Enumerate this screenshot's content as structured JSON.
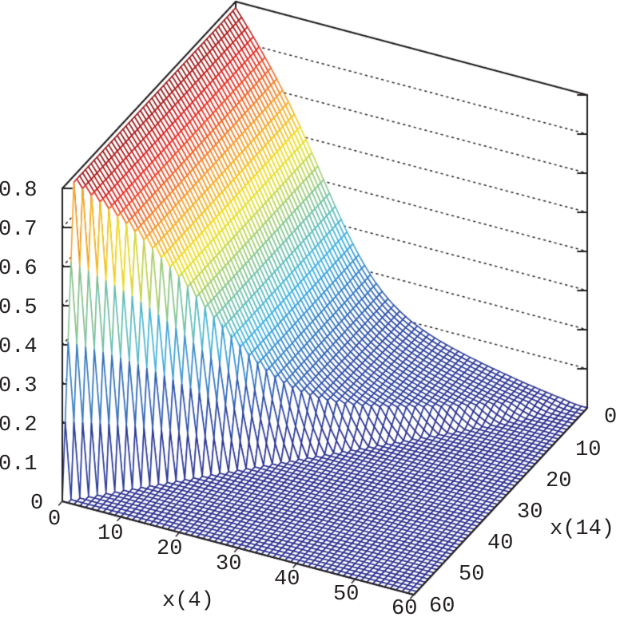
{
  "chart_data": {
    "type": "surface3d",
    "title": "",
    "xlabel": "x(4)",
    "ylabel": "x(14)",
    "zlabel": "",
    "x_ticks": [
      "0",
      "10",
      "20",
      "30",
      "40",
      "50",
      "60"
    ],
    "y_ticks": [
      "0",
      "10",
      "20",
      "30",
      "40",
      "50",
      "60"
    ],
    "z_ticks": [
      "0",
      "0.1",
      "0.2",
      "0.3",
      "0.4",
      "0.5",
      "0.6",
      "0.7",
      "0.8"
    ],
    "xlim": [
      0,
      60
    ],
    "ylim": [
      0,
      60
    ],
    "zlim": [
      0,
      0.8
    ],
    "grid": true,
    "colormap": "jet",
    "surface_description": "Surface peaks near 0.8 for small x(14) across x(4) from ~0 to ~20, decays as x(14) grows, and is ~0 where x(14) exceeds x(4).",
    "sample_points": [
      {
        "x4": 0,
        "x14": 0,
        "z": 0.8
      },
      {
        "x4": 15,
        "x14": 0,
        "z": 0.8
      },
      {
        "x4": 30,
        "x14": 0,
        "z": 0.62
      },
      {
        "x4": 45,
        "x14": 0,
        "z": 0.35
      },
      {
        "x4": 60,
        "x14": 0,
        "z": 0.0
      },
      {
        "x4": 60,
        "x14": 60,
        "z": 0.0
      },
      {
        "x4": 0,
        "x14": 60,
        "z": 0.0
      }
    ]
  },
  "labels": {
    "x_axis": "x(4)",
    "y_axis": "x(14)"
  },
  "colors": {
    "low": "#2b2f8f",
    "mid_low": "#3fb4e6",
    "mid": "#f2e51c",
    "mid_high": "#ee3a23",
    "high": "#7e1518",
    "axis": "#231f20"
  }
}
